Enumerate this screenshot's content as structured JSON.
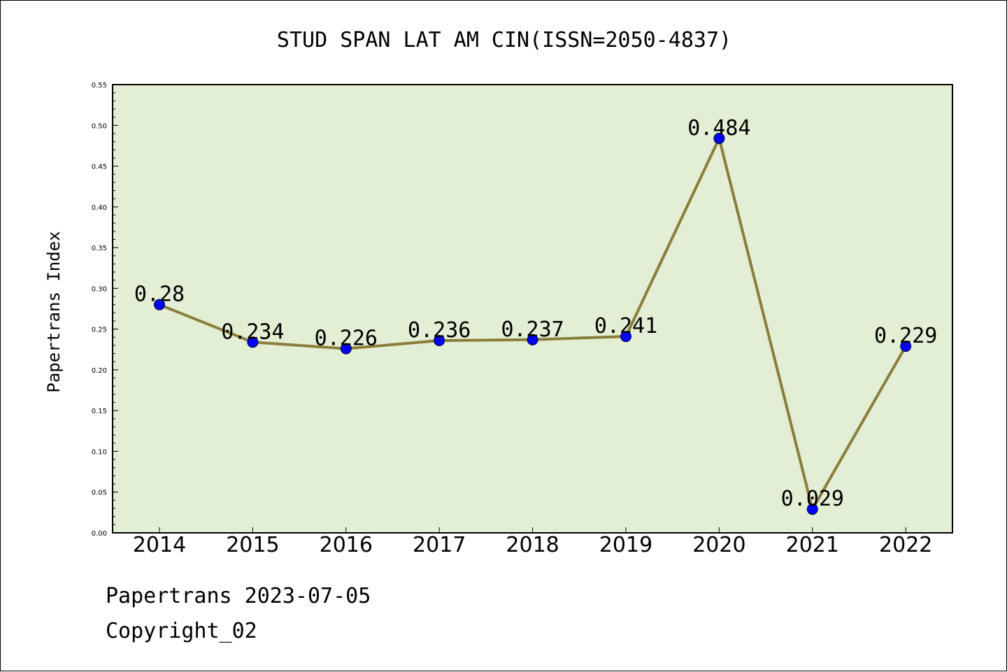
{
  "chart_data": {
    "type": "line",
    "title": "STUD SPAN LAT AM CIN(ISSN=2050-4837)",
    "ylabel": "Papertrans Index",
    "xlabel": "",
    "categories": [
      "2014",
      "2015",
      "2016",
      "2017",
      "2018",
      "2019",
      "2020",
      "2021",
      "2022"
    ],
    "values": [
      0.28,
      0.234,
      0.226,
      0.236,
      0.237,
      0.241,
      0.484,
      0.029,
      0.229
    ],
    "data_labels": [
      "0.28",
      "0.234",
      "0.226",
      "0.236",
      "0.237",
      "0.241",
      "0.484",
      "0.029",
      "0.229"
    ],
    "ylim": [
      0,
      0.55
    ],
    "yticks": [
      "0.00",
      "0.05",
      "0.10",
      "0.15",
      "0.20",
      "0.25",
      "0.30",
      "0.35",
      "0.40",
      "0.45",
      "0.50",
      "0.55"
    ],
    "grid": false,
    "colors": {
      "plot_background": "#e2efd4",
      "line": "#8b7d3a",
      "marker": "#0000ff"
    }
  },
  "footer": {
    "date_line": "Papertrans 2023-07-05",
    "copyright": "Copyright_02"
  }
}
